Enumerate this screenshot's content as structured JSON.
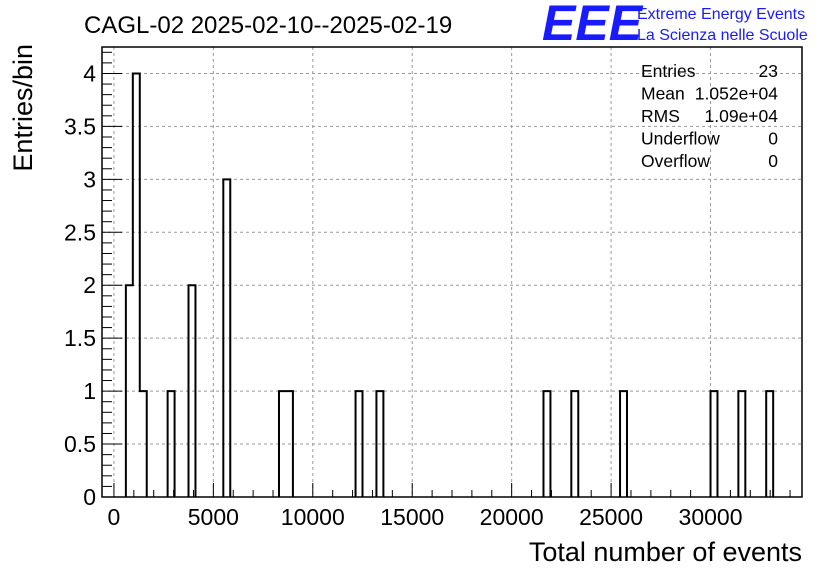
{
  "chart_data": {
    "type": "bar",
    "title": "CAGL-02 2025-02-10--2025-02-19",
    "xlabel": "Total number of events",
    "ylabel": "Entries/bin",
    "xlim": [
      -600,
      34600
    ],
    "ylim": [
      0,
      4.25
    ],
    "bin_width": 350,
    "grid": true,
    "bins": [
      {
        "start": 600,
        "value": 2
      },
      {
        "start": 950,
        "value": 4
      },
      {
        "start": 1300,
        "value": 1
      },
      {
        "start": 2700,
        "value": 1
      },
      {
        "start": 3750,
        "value": 2
      },
      {
        "start": 5500,
        "value": 3
      },
      {
        "start": 8300,
        "value": 1
      },
      {
        "start": 8650,
        "value": 1
      },
      {
        "start": 12150,
        "value": 1
      },
      {
        "start": 13200,
        "value": 1
      },
      {
        "start": 21600,
        "value": 1
      },
      {
        "start": 23000,
        "value": 1
      },
      {
        "start": 25450,
        "value": 1
      },
      {
        "start": 30000,
        "value": 1
      },
      {
        "start": 31400,
        "value": 1
      },
      {
        "start": 32800,
        "value": 1
      }
    ],
    "x_ticks": [
      {
        "value": 0,
        "label": "0"
      },
      {
        "value": 5000,
        "label": "5000"
      },
      {
        "value": 10000,
        "label": "10000"
      },
      {
        "value": 15000,
        "label": "15000"
      },
      {
        "value": 20000,
        "label": "20000"
      },
      {
        "value": 25000,
        "label": "25000"
      },
      {
        "value": 30000,
        "label": "30000"
      }
    ],
    "y_ticks": [
      {
        "value": 0,
        "label": "0"
      },
      {
        "value": 0.5,
        "label": "0.5"
      },
      {
        "value": 1,
        "label": "1"
      },
      {
        "value": 1.5,
        "label": "1.5"
      },
      {
        "value": 2,
        "label": "2"
      },
      {
        "value": 2.5,
        "label": "2.5"
      },
      {
        "value": 3,
        "label": "3"
      },
      {
        "value": 3.5,
        "label": "3.5"
      },
      {
        "value": 4,
        "label": "4"
      }
    ],
    "stats": [
      {
        "label": "Entries",
        "value": "23"
      },
      {
        "label": "Mean",
        "value": "1.052e+04"
      },
      {
        "label": "RMS",
        "value": "1.09e+04"
      },
      {
        "label": "Underflow",
        "value": "0"
      },
      {
        "label": "Overflow",
        "value": "0"
      }
    ]
  },
  "logo": {
    "text": "EEE",
    "line1": "Extreme Energy Events",
    "line2": "La Scienza nelle Scuole",
    "color": "#1a1aff"
  }
}
